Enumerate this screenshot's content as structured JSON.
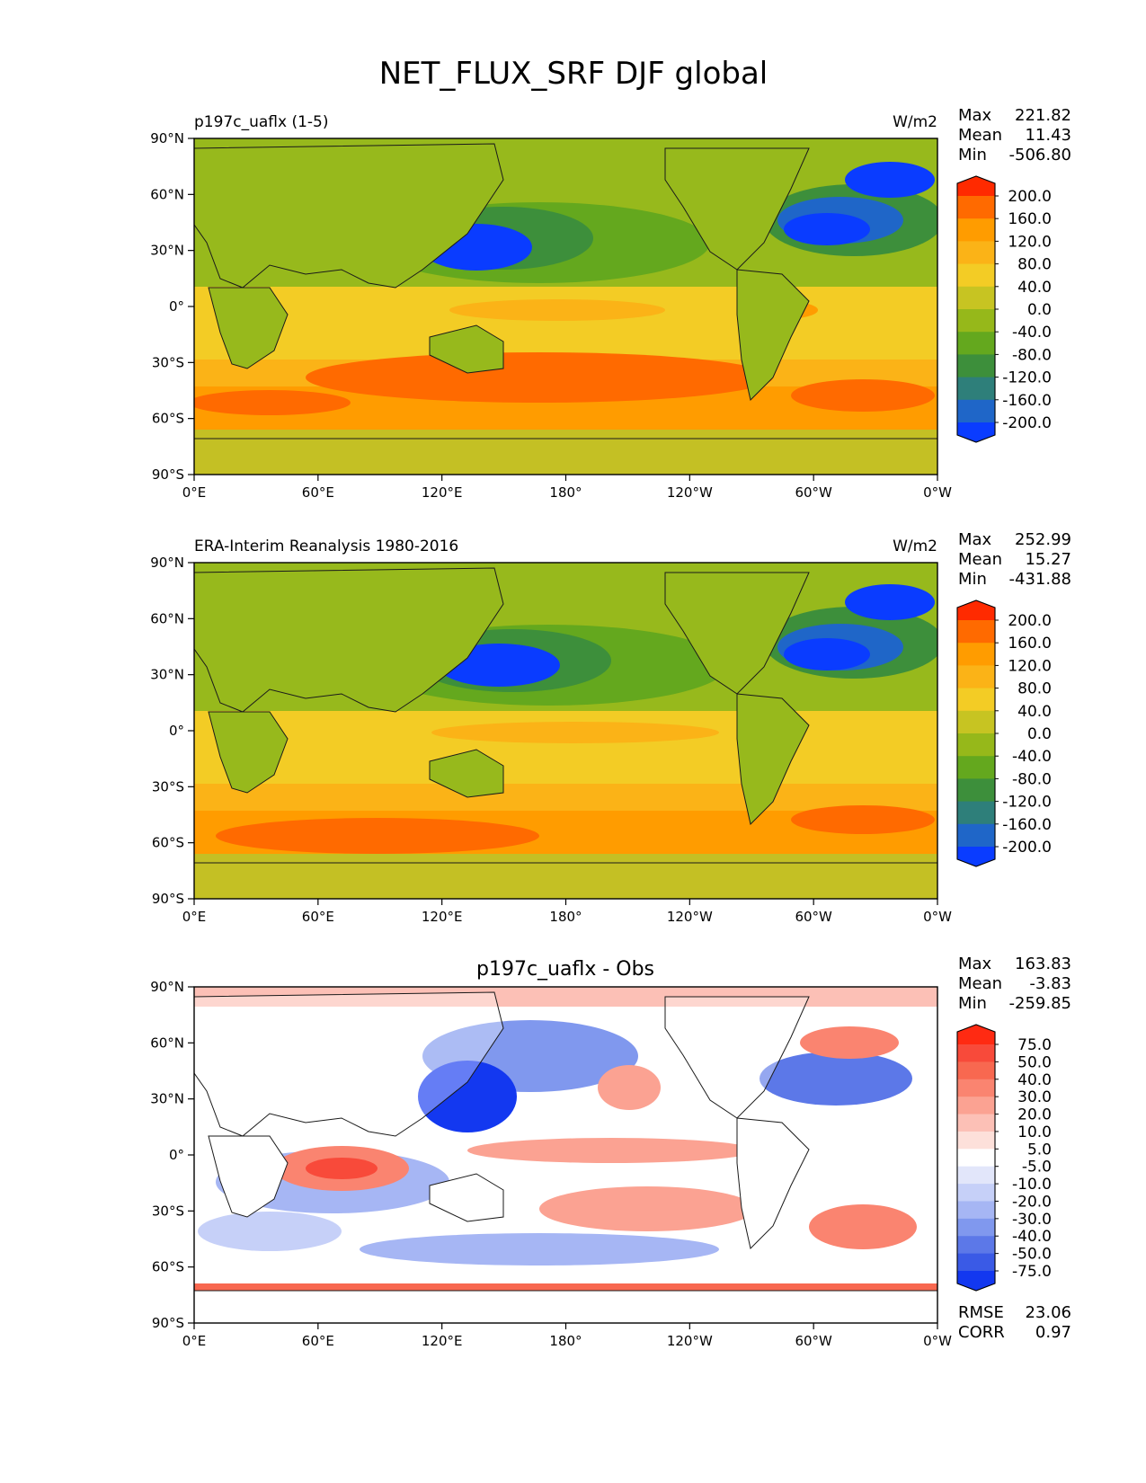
{
  "figure": {
    "title": "NET_FLUX_SRF DJF global"
  },
  "axis": {
    "lat_ticks": [
      "90°N",
      "60°N",
      "30°N",
      "0°",
      "30°S",
      "60°S",
      "90°S"
    ],
    "lon_ticks": [
      "0°E",
      "60°E",
      "120°E",
      "180°",
      "120°W",
      "60°W",
      "0°W"
    ]
  },
  "panels": [
    {
      "left_title": "p197c_uaflx (1-5)",
      "center_title": "",
      "units": "W/m2",
      "stats": {
        "labels": [
          "Max",
          "Mean",
          "Min"
        ],
        "values": [
          "221.82",
          "11.43",
          "-506.80"
        ]
      },
      "colorbar": {
        "labels": [
          "200.0",
          "160.0",
          "120.0",
          "80.0",
          "40.0",
          "0.0",
          "-40.0",
          "-80.0",
          "-120.0",
          "-160.0",
          "-200.0"
        ],
        "colors": [
          "#ff2a00",
          "#ff6a00",
          "#ff9c00",
          "#fbb317",
          "#f3cc25",
          "#c7c422",
          "#96b81a",
          "#64a81e",
          "#3d8f3b",
          "#2e7f7a",
          "#1f66c8",
          "#0a3cff"
        ]
      }
    },
    {
      "left_title": "ERA-Interim Reanalysis 1980-2016",
      "center_title": "",
      "units": "W/m2",
      "stats": {
        "labels": [
          "Max",
          "Mean",
          "Min"
        ],
        "values": [
          "252.99",
          "15.27",
          "-431.88"
        ]
      },
      "colorbar": {
        "labels": [
          "200.0",
          "160.0",
          "120.0",
          "80.0",
          "40.0",
          "0.0",
          "-40.0",
          "-80.0",
          "-120.0",
          "-160.0",
          "-200.0"
        ],
        "colors": [
          "#ff2a00",
          "#ff6a00",
          "#ff9c00",
          "#fbb317",
          "#f3cc25",
          "#c7c422",
          "#96b81a",
          "#64a81e",
          "#3d8f3b",
          "#2e7f7a",
          "#1f66c8",
          "#0a3cff"
        ]
      }
    },
    {
      "left_title": "",
      "center_title": "p197c_uaflx - Obs",
      "units": "",
      "stats": {
        "labels": [
          "Max",
          "Mean",
          "Min"
        ],
        "values": [
          "163.83",
          "-3.83",
          "-259.85"
        ]
      },
      "colorbar": {
        "labels": [
          "75.0",
          "50.0",
          "40.0",
          "30.0",
          "20.0",
          "10.0",
          "5.0",
          "-5.0",
          "-10.0",
          "-20.0",
          "-30.0",
          "-40.0",
          "-50.0",
          "-75.0"
        ],
        "colors": [
          "#ff2a12",
          "#f84a3a",
          "#f86850",
          "#fa8470",
          "#fba292",
          "#fcc0b6",
          "#fde0da",
          "#ffffff",
          "#e2e6fa",
          "#c6d0f8",
          "#a6b6f4",
          "#8098ee",
          "#5c78e8",
          "#3a5ae6",
          "#1338f0"
        ]
      },
      "metrics": {
        "labels": [
          "RMSE",
          "CORR"
        ],
        "values": [
          "23.06",
          "0.97"
        ]
      }
    }
  ],
  "colors": {
    "land_base": "#97b91c",
    "land_polar": "#c4c024",
    "coast": "#1a1a1a"
  }
}
